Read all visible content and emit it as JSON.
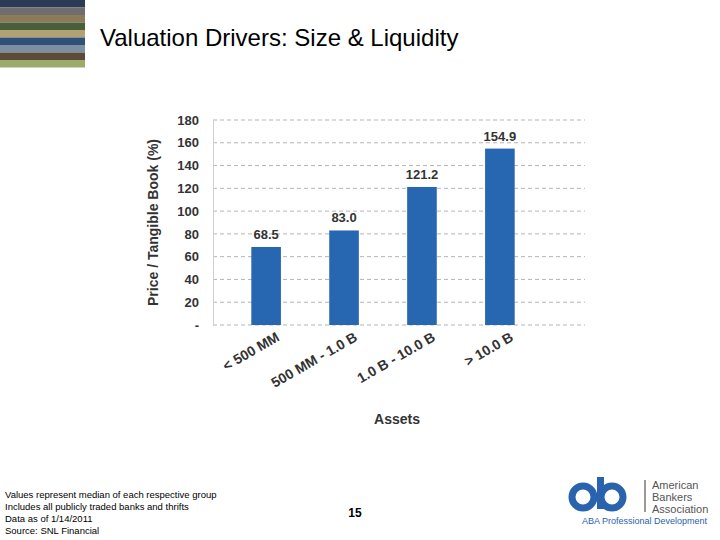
{
  "chart_data": {
    "type": "bar",
    "title": "Valuation Drivers: Size & Liquidity",
    "categories": [
      "< 500 MM",
      "500 MM - 1.0 B",
      "1.0 B - 10.0 B",
      "> 10.0 B"
    ],
    "values": [
      68.5,
      83.0,
      121.2,
      154.9
    ],
    "value_labels": [
      "68.5",
      "83.0",
      "121.2",
      "154.9"
    ],
    "data_labels": true,
    "color": "#2766b0",
    "x_label": "Assets",
    "y_label": "Price / Tangible Book (%)",
    "ylim": [
      0,
      180
    ],
    "yticks": [
      {
        "value": 0,
        "label": "-"
      },
      20,
      40,
      60,
      80,
      100,
      120,
      140,
      160,
      180
    ],
    "grid": true,
    "annotations": [
      "Values represent median of each respective group",
      "Includes all publicly traded banks and thrifts",
      "Data as of 1/14/2011",
      "Source: SNL Financial"
    ]
  },
  "slide": {
    "page_number": "15",
    "logo": {
      "name_lines": [
        "American",
        "Bankers",
        "Association"
      ],
      "tagline": "ABA Professional Development"
    }
  }
}
